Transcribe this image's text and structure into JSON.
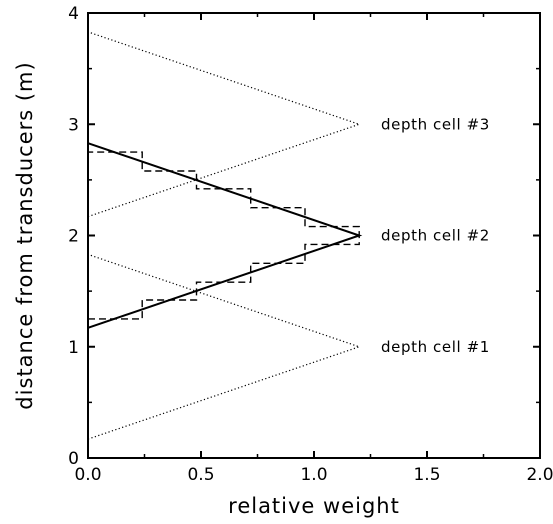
{
  "chart_data": {
    "type": "line",
    "xlabel": "relative weight",
    "ylabel": "distance from transducers (m)",
    "xlim": [
      0,
      2.0
    ],
    "ylim": [
      0,
      4
    ],
    "x_ticks": [
      "0.0",
      "0.5",
      "1.0",
      "1.5",
      "2.0"
    ],
    "y_ticks": [
      "0",
      "1",
      "2",
      "3",
      "4"
    ],
    "grid": false,
    "series": [
      {
        "style": "dotted",
        "x": [
          0.0,
          1.2,
          0.0
        ],
        "y": [
          0.17,
          1.0,
          1.83
        ]
      },
      {
        "style": "solid",
        "x": [
          0.0,
          1.2,
          0.0
        ],
        "y": [
          1.17,
          2.0,
          2.83
        ]
      },
      {
        "style": "dotted",
        "x": [
          0.0,
          1.2,
          0.0
        ],
        "y": [
          2.17,
          3.0,
          3.83
        ]
      },
      {
        "style": "dashed-step",
        "x": [
          0.0,
          0.24,
          0.24,
          0.48,
          0.48,
          0.72,
          0.72,
          0.96,
          0.96,
          1.2,
          1.2,
          0.96,
          0.96,
          0.72,
          0.72,
          0.48,
          0.48,
          0.24,
          0.24,
          0.0
        ],
        "y": [
          1.25,
          1.25,
          1.42,
          1.42,
          1.58,
          1.58,
          1.75,
          1.75,
          1.92,
          1.92,
          2.08,
          2.08,
          2.25,
          2.25,
          2.42,
          2.42,
          2.58,
          2.58,
          2.75,
          2.75
        ]
      }
    ],
    "annotations": [
      {
        "text": "depth cell #1",
        "x": 1.27,
        "y": 1.0
      },
      {
        "text": "depth cell #2",
        "x": 1.27,
        "y": 2.0
      },
      {
        "text": "depth cell #3",
        "x": 1.27,
        "y": 3.0
      }
    ]
  }
}
